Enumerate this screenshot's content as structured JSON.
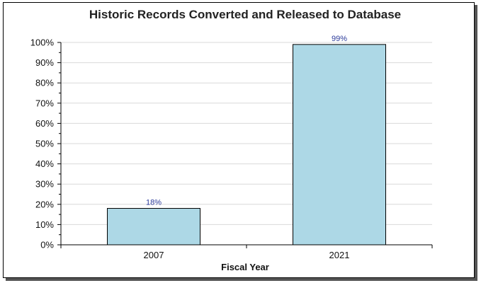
{
  "chart_data": {
    "type": "bar",
    "title": "Historic Records Converted and Released to Database",
    "xlabel": "Fiscal Year",
    "ylabel": "",
    "categories": [
      "2007",
      "2021"
    ],
    "values": [
      18,
      99
    ],
    "data_labels": [
      "18%",
      "99%"
    ],
    "ylim": [
      0,
      100
    ],
    "y_ticks": [
      "0%",
      "10%",
      "20%",
      "30%",
      "40%",
      "50%",
      "60%",
      "70%",
      "80%",
      "90%",
      "100%"
    ],
    "grid": true,
    "bar_color": "#add8e6",
    "label_color": "#2b3a9a"
  }
}
